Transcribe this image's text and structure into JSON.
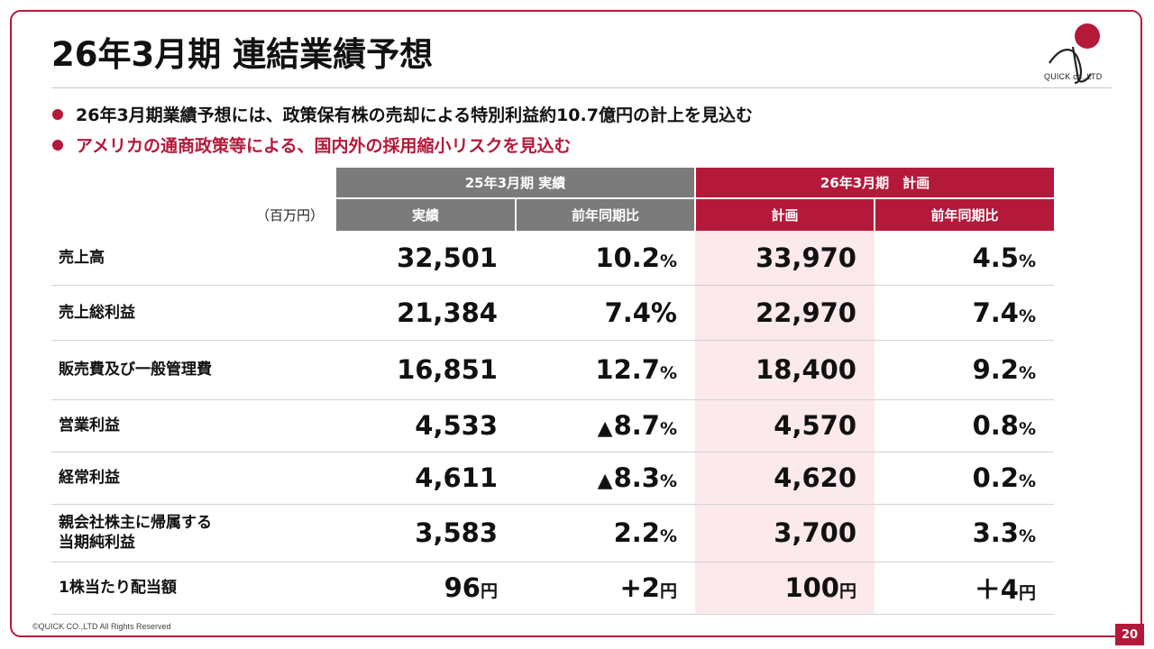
{
  "title": "26年3月期 連結業績予想",
  "logo": {
    "text": "QUICK co.,LTD"
  },
  "bullets": [
    "26年3月期業績予想には、政策保有株の売却による特別利益約10.7億円の計上を見込む",
    "アメリカの通商政策等による、国内外の採用縮小リスクを見込む"
  ],
  "table": {
    "unit": "（百万円）",
    "group_actual": "25年3月期 実績",
    "group_plan": "26年3月期　計画",
    "col_actual": "実績",
    "col_actual_yoy": "前年同期比",
    "col_plan": "計画",
    "col_plan_yoy": "前年同期比",
    "rows": [
      {
        "label": "売上高",
        "actual": "32,501",
        "actual_yoy_mark": "",
        "actual_yoy": "10.2",
        "actual_yoy_unit": "%",
        "plan": "33,970",
        "plan_unit": "",
        "actual_unit": "",
        "plan_yoy": "4.5",
        "plan_yoy_unit": "%"
      },
      {
        "label": "売上総利益",
        "actual": "21,384",
        "actual_yoy_mark": "",
        "actual_yoy": "7.4%",
        "actual_yoy_unit": "",
        "plan": "22,970",
        "plan_unit": "",
        "actual_unit": "",
        "plan_yoy": "7.4",
        "plan_yoy_unit": "%"
      },
      {
        "label": "販売費及び一般管理費",
        "actual": "16,851",
        "actual_yoy_mark": "",
        "actual_yoy": "12.7",
        "actual_yoy_unit": "%",
        "plan": "18,400",
        "plan_unit": "",
        "actual_unit": "",
        "plan_yoy": "9.2",
        "plan_yoy_unit": "%"
      },
      {
        "label": "営業利益",
        "actual": "4,533",
        "actual_yoy_mark": "▲",
        "actual_yoy": "8.7",
        "actual_yoy_unit": "%",
        "plan": "4,570",
        "plan_unit": "",
        "actual_unit": "",
        "plan_yoy": "0.8",
        "plan_yoy_unit": "%"
      },
      {
        "label": "経常利益",
        "actual": "4,611",
        "actual_yoy_mark": "▲",
        "actual_yoy": "8.3",
        "actual_yoy_unit": "%",
        "plan": "4,620",
        "plan_unit": "",
        "actual_unit": "",
        "plan_yoy": "0.2",
        "plan_yoy_unit": "%"
      },
      {
        "label": "親会社株主に帰属する\n当期純利益",
        "actual": "3,583",
        "actual_yoy_mark": "",
        "actual_yoy": "2.2",
        "actual_yoy_unit": "%",
        "plan": "3,700",
        "plan_unit": "",
        "actual_unit": "",
        "plan_yoy": "3.3",
        "plan_yoy_unit": "%"
      },
      {
        "label": "1株当たり配当額",
        "actual": "96",
        "actual_unit": "円",
        "actual_yoy_mark": "",
        "actual_yoy": "+2",
        "actual_yoy_unit": "円",
        "plan": "100",
        "plan_unit": "円",
        "plan_yoy": "＋4",
        "plan_yoy_unit": "円"
      }
    ]
  },
  "footer": {
    "copyright": "©QUICK CO.,LTD All Rights Reserved",
    "page": "20"
  },
  "colors": {
    "accent": "#b5193a",
    "header_gray": "#7b7b7b",
    "plan_bg": "#fce9ec"
  }
}
